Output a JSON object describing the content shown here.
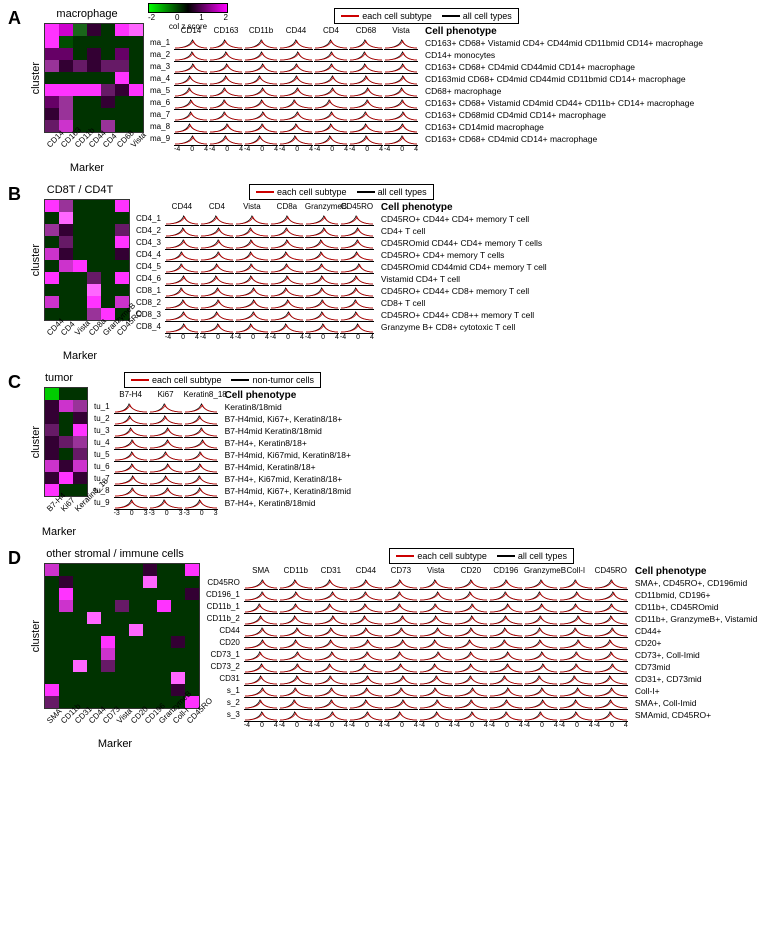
{
  "colorbar": {
    "ticks": [
      "-2",
      "0",
      "1",
      "2"
    ],
    "label": "col z score",
    "gradient": "linear-gradient(to right,#00ff00,#000000,#ff00ff)"
  },
  "legend": {
    "subtype": {
      "label": "each cell subtype",
      "color": "#cc0000"
    },
    "all": {
      "label": "all cell types",
      "color": "#000000"
    },
    "nontumor": {
      "label": "non-tumor cells",
      "color": "#000000"
    }
  },
  "ridge": {
    "width": 34,
    "ticks": [
      "-4",
      "0",
      "4"
    ],
    "ticks3": [
      "-3",
      "0",
      "3"
    ]
  },
  "panels": {
    "A": {
      "letter": "A",
      "title": "macrophage",
      "ylabels": [
        "ma_1",
        "ma_2",
        "ma_3",
        "ma_4",
        "ma_5",
        "ma_6",
        "ma_7",
        "ma_8",
        "ma_9"
      ],
      "markers": [
        "CD14",
        "CD163",
        "CD11b",
        "CD44",
        "CD4",
        "CD68",
        "Vista"
      ],
      "heatmap": [
        [
          "#ff33ff",
          "#cc00cc",
          "#1a661a",
          "#330033",
          "#003300",
          "#ff33ff",
          "#ff66ff"
        ],
        [
          "#ff33ff",
          "#004d00",
          "#003300",
          "#003300",
          "#003300",
          "#003300",
          "#003300"
        ],
        [
          "#660066",
          "#660066",
          "#003300",
          "#330033",
          "#003300",
          "#660066",
          "#003300"
        ],
        [
          "#993399",
          "#330033",
          "#661a66",
          "#330033",
          "#661a66",
          "#661a66",
          "#003300"
        ],
        [
          "#003300",
          "#003300",
          "#003300",
          "#003300",
          "#003300",
          "#ff33ff",
          "#003300"
        ],
        [
          "#ff33ff",
          "#ff33ff",
          "#ff33ff",
          "#ff33ff",
          "#661a66",
          "#330033",
          "#ff33ff"
        ],
        [
          "#660066",
          "#993399",
          "#003300",
          "#003300",
          "#330033",
          "#003300",
          "#003300"
        ],
        [
          "#330033",
          "#993399",
          "#003300",
          "#003300",
          "#003300",
          "#003300",
          "#003300"
        ],
        [
          "#661a66",
          "#cc33cc",
          "#003300",
          "#003300",
          "#993399",
          "#003300",
          "#003300"
        ]
      ],
      "phenotypes": [
        "CD163+ CD68+ Vistamid CD4+ CD44mid CD11bmid CD14+ macrophage",
        "CD14+ monocytes",
        "CD163+ CD68+ CD4mid CD44mid CD14+ macrophage",
        "CD163mid CD68+ CD4mid CD44mid CD11bmid CD14+ macrophage",
        "CD68+ macrophage",
        "CD163+ CD68+ Vistamid CD4mid CD44+ CD11b+ CD14+ macrophage",
        "CD163+ CD68mid CD4mid CD14+ macrophage",
        "CD163+ CD14mid macrophage",
        "CD163+ CD68+ CD4mid CD14+ macrophage"
      ]
    },
    "B": {
      "letter": "B",
      "title": "CD8T / CD4T",
      "ylabels": [
        "CD4_1",
        "CD4_2",
        "CD4_3",
        "CD4_4",
        "CD4_5",
        "CD4_6",
        "CD8_1",
        "CD8_2",
        "CD8_3",
        "CD8_4"
      ],
      "markers": [
        "CD44",
        "CD4",
        "Vista",
        "CD8a",
        "GranzymeB",
        "CD45RO"
      ],
      "heatmap": [
        [
          "#ff33ff",
          "#993399",
          "#003300",
          "#003300",
          "#003300",
          "#ff33ff"
        ],
        [
          "#003300",
          "#ff66ff",
          "#003300",
          "#003300",
          "#003300",
          "#003300"
        ],
        [
          "#993399",
          "#330033",
          "#003300",
          "#003300",
          "#003300",
          "#661a66"
        ],
        [
          "#003300",
          "#661a66",
          "#003300",
          "#003300",
          "#003300",
          "#ff33ff"
        ],
        [
          "#cc33cc",
          "#330033",
          "#003300",
          "#003300",
          "#003300",
          "#330033"
        ],
        [
          "#003300",
          "#cc33cc",
          "#ff33ff",
          "#003300",
          "#003300",
          "#003300"
        ],
        [
          "#ff33ff",
          "#003300",
          "#003300",
          "#661a66",
          "#003300",
          "#ff33ff"
        ],
        [
          "#003300",
          "#003300",
          "#003300",
          "#ff66ff",
          "#003300",
          "#003300"
        ],
        [
          "#cc33cc",
          "#003300",
          "#003300",
          "#ff33ff",
          "#003300",
          "#cc33cc"
        ],
        [
          "#003300",
          "#003300",
          "#003300",
          "#993399",
          "#ff33ff",
          "#003300"
        ]
      ],
      "phenotypes": [
        "CD45RO+ CD44+ CD4+ memory T cell",
        "CD4+ T cell",
        "CD45ROmid CD44+ CD4+ memory T cells",
        "CD45RO+ CD4+ memory T cells",
        "CD45ROmid CD44mid CD4+ memory T cell",
        "Vistamid CD4+ T cell",
        "CD45RO+ CD44+ CD8+ memory T cell",
        "CD8+ T cell",
        "CD45RO+ CD44+ CD8++ memory T cell",
        "Granzyme B+ CD8+ cytotoxic T cell"
      ]
    },
    "C": {
      "letter": "C",
      "title": "tumor",
      "ylabels": [
        "tu_1",
        "tu_2",
        "tu_3",
        "tu_4",
        "tu_5",
        "tu_6",
        "tu_7",
        "tu_8",
        "tu_9"
      ],
      "markers": [
        "B7-H4",
        "Ki67",
        "Keratin8_18"
      ],
      "heatmap": [
        [
          "#00cc00",
          "#003300",
          "#003300"
        ],
        [
          "#330033",
          "#cc33cc",
          "#993399"
        ],
        [
          "#330033",
          "#003300",
          "#330033"
        ],
        [
          "#661a66",
          "#003300",
          "#ff33ff"
        ],
        [
          "#330033",
          "#661a66",
          "#993399"
        ],
        [
          "#330033",
          "#003300",
          "#661a66"
        ],
        [
          "#cc33cc",
          "#330033",
          "#cc33cc"
        ],
        [
          "#330033",
          "#ff33ff",
          "#330033"
        ],
        [
          "#ff33ff",
          "#003300",
          "#003300"
        ]
      ],
      "phenotypes": [
        "Keratin8/18mid",
        "B7-H4mid, Ki67+, Keratin8/18+",
        "B7-H4mid Keratin8/18mid",
        "B7-H4+, Keratin8/18+",
        "B7-H4mid, Ki67mid, Keratin8/18+",
        "B7-H4mid, Keratin8/18+",
        "B7-H4+, Ki67mid, Keratin8/18+",
        "B7-H4mid, Ki67+, Keratin8/18mid",
        "B7-H4+, Keratin8/18mid"
      ]
    },
    "D": {
      "letter": "D",
      "title": "other stromal / immune cells",
      "ylabels": [
        "CD45RO",
        "CD196_1",
        "CD11b_1",
        "CD11b_2",
        "CD44",
        "CD20",
        "CD73_1",
        "CD73_2",
        "CD31",
        "s_1",
        "s_2",
        "s_3"
      ],
      "markers": [
        "SMA",
        "CD11b",
        "CD31",
        "CD44",
        "CD73",
        "Vista",
        "CD20",
        "CD196",
        "GranzymeB",
        "Coll-I",
        "CD45RO"
      ],
      "heatmap": [
        [
          "#cc33cc",
          "#003300",
          "#003300",
          "#003300",
          "#003300",
          "#003300",
          "#003300",
          "#330033",
          "#003300",
          "#003300",
          "#ff33ff"
        ],
        [
          "#003300",
          "#330033",
          "#003300",
          "#003300",
          "#003300",
          "#003300",
          "#003300",
          "#ff66ff",
          "#003300",
          "#003300",
          "#003300"
        ],
        [
          "#003300",
          "#ff33ff",
          "#003300",
          "#003300",
          "#003300",
          "#003300",
          "#003300",
          "#003300",
          "#003300",
          "#003300",
          "#330033"
        ],
        [
          "#003300",
          "#cc33cc",
          "#003300",
          "#003300",
          "#003300",
          "#661a66",
          "#003300",
          "#003300",
          "#ff33ff",
          "#003300",
          "#003300"
        ],
        [
          "#003300",
          "#003300",
          "#003300",
          "#ff66ff",
          "#003300",
          "#003300",
          "#003300",
          "#003300",
          "#003300",
          "#003300",
          "#003300"
        ],
        [
          "#003300",
          "#003300",
          "#003300",
          "#003300",
          "#003300",
          "#003300",
          "#ff66ff",
          "#003300",
          "#003300",
          "#003300",
          "#003300"
        ],
        [
          "#003300",
          "#003300",
          "#003300",
          "#003300",
          "#ff33ff",
          "#003300",
          "#003300",
          "#003300",
          "#003300",
          "#330033",
          "#003300"
        ],
        [
          "#003300",
          "#003300",
          "#003300",
          "#003300",
          "#cc33cc",
          "#003300",
          "#003300",
          "#003300",
          "#003300",
          "#003300",
          "#003300"
        ],
        [
          "#003300",
          "#003300",
          "#ff66ff",
          "#003300",
          "#661a66",
          "#003300",
          "#003300",
          "#003300",
          "#003300",
          "#003300",
          "#003300"
        ],
        [
          "#003300",
          "#003300",
          "#003300",
          "#003300",
          "#003300",
          "#003300",
          "#003300",
          "#003300",
          "#003300",
          "#ff66ff",
          "#003300"
        ],
        [
          "#ff33ff",
          "#003300",
          "#003300",
          "#003300",
          "#003300",
          "#003300",
          "#003300",
          "#003300",
          "#003300",
          "#330033",
          "#003300"
        ],
        [
          "#661a66",
          "#003300",
          "#003300",
          "#003300",
          "#003300",
          "#003300",
          "#003300",
          "#003300",
          "#003300",
          "#003300",
          "#ff33ff"
        ]
      ],
      "phenotypes": [
        "SMA+, CD45RO+, CD196mid",
        "CD11bmid, CD196+",
        "CD11b+, CD45ROmid",
        "CD11b+, GranzymeB+, Vistamid",
        "CD44+",
        "CD20+",
        "CD73+, Coll-Imid",
        "CD73mid",
        "CD31+, CD73mid",
        "Coll-I+",
        "SMA+, Coll-Imid",
        "SMAmid, CD45RO+"
      ]
    }
  },
  "labels": {
    "cluster": "cluster",
    "marker": "Marker",
    "phenotype": "Cell phenotype"
  }
}
